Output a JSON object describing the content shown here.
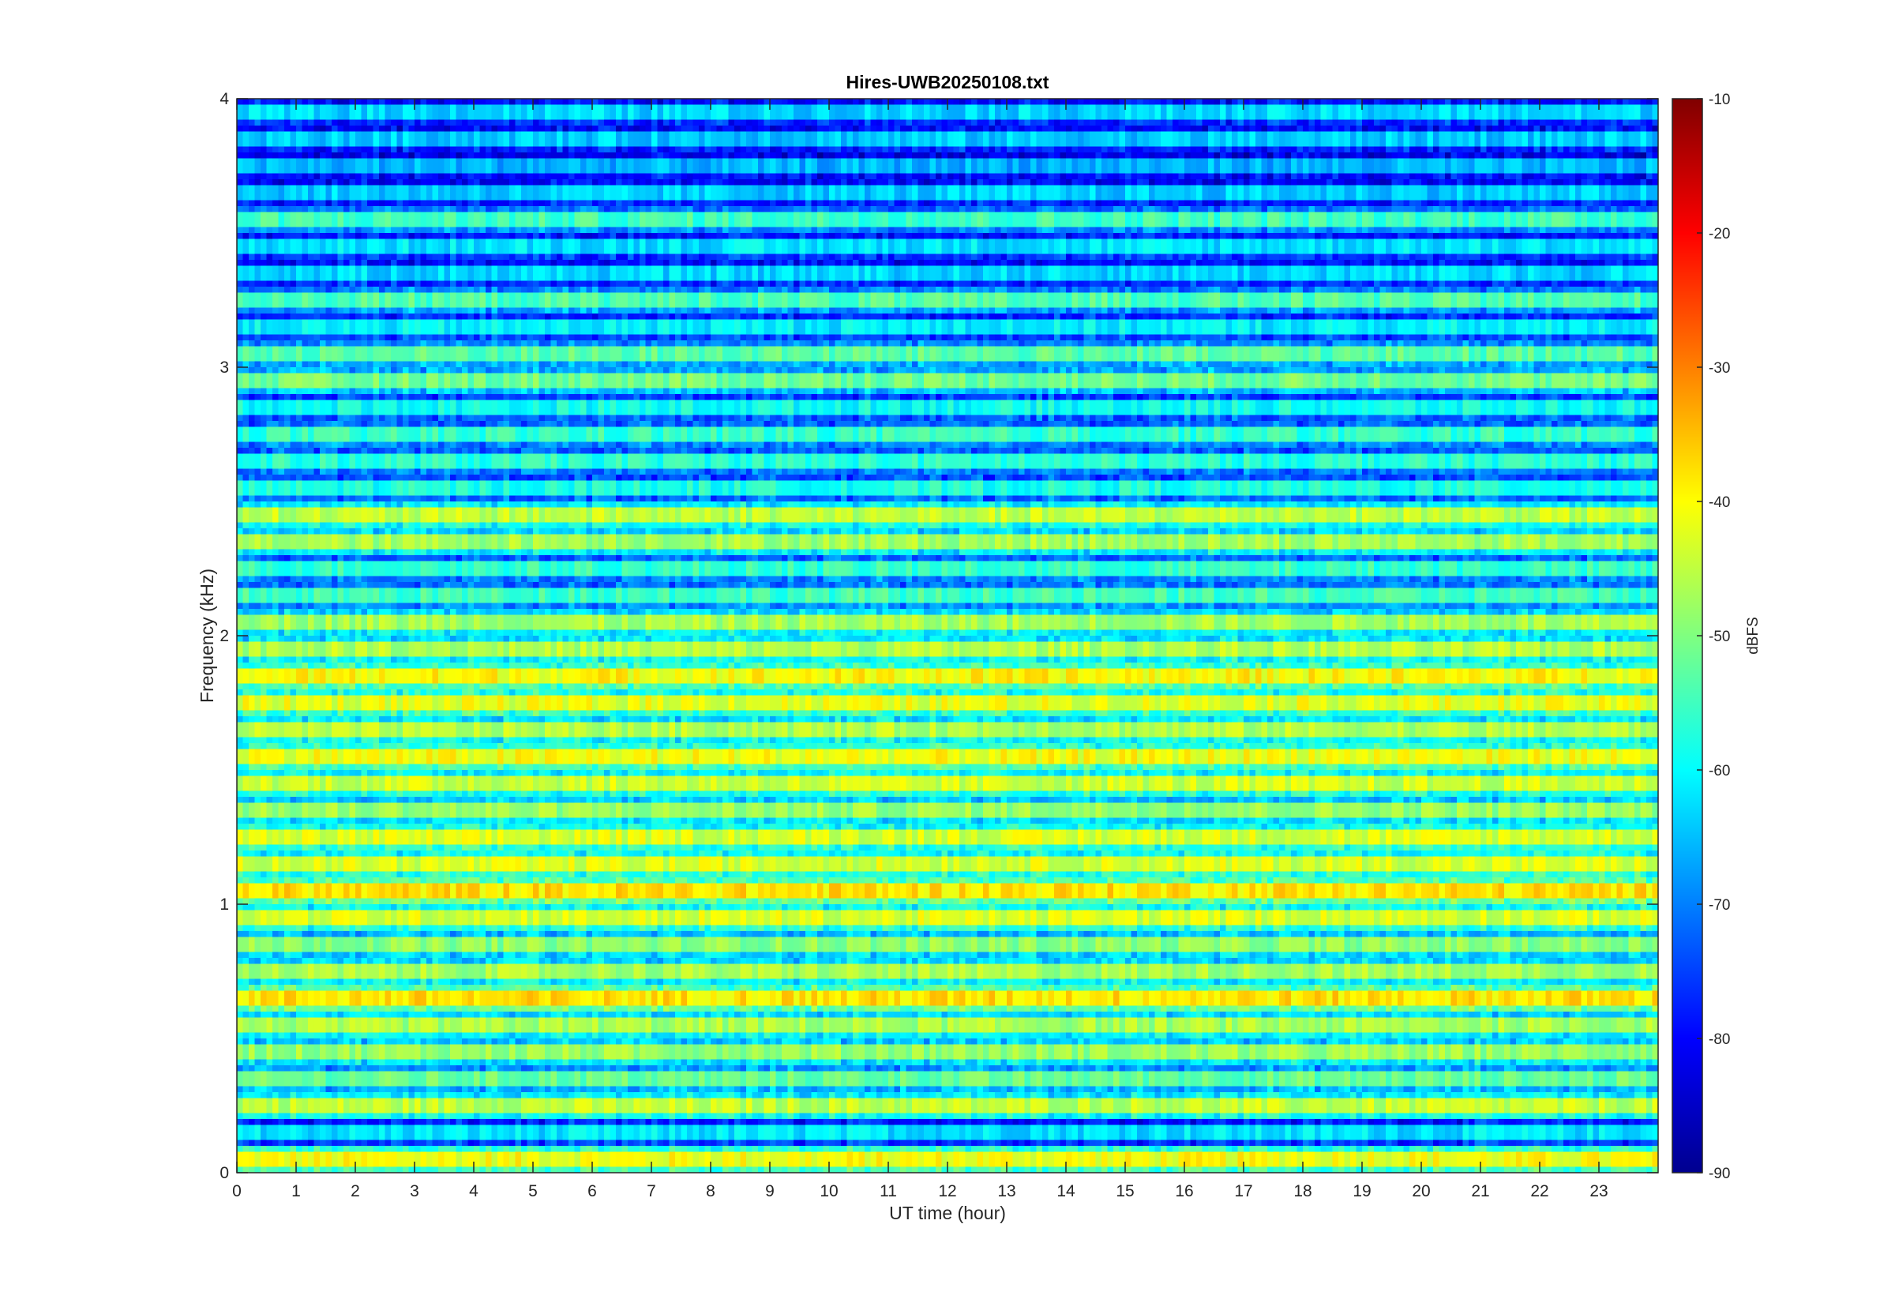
{
  "chart_data": {
    "type": "heatmap",
    "title": "Hires-UWB20250108.txt",
    "xlabel": "UT time (hour)",
    "ylabel": "Frequency (kHz)",
    "xlim": [
      0,
      24
    ],
    "ylim": [
      0,
      4
    ],
    "x_ticks": [
      0,
      1,
      2,
      3,
      4,
      5,
      6,
      7,
      8,
      9,
      10,
      11,
      12,
      13,
      14,
      15,
      16,
      17,
      18,
      19,
      20,
      21,
      22,
      23
    ],
    "y_ticks": [
      0,
      1,
      2,
      3,
      4
    ],
    "colorbar": {
      "label": "dBFS",
      "colormap": "jet",
      "range": [
        -90,
        -10
      ],
      "ticks": [
        -90,
        -80,
        -70,
        -60,
        -50,
        -40,
        -30,
        -20,
        -10
      ]
    },
    "grid": false,
    "band_spacing_khz": 0.1,
    "bands_khz": [
      {
        "f": 0.05,
        "level": -41
      },
      {
        "f": 0.15,
        "level": -62
      },
      {
        "f": 0.25,
        "level": -45
      },
      {
        "f": 0.35,
        "level": -52
      },
      {
        "f": 0.45,
        "level": -48
      },
      {
        "f": 0.55,
        "level": -47
      },
      {
        "f": 0.65,
        "level": -38
      },
      {
        "f": 0.75,
        "level": -47
      },
      {
        "f": 0.85,
        "level": -49
      },
      {
        "f": 0.95,
        "level": -43
      },
      {
        "f": 1.05,
        "level": -38
      },
      {
        "f": 1.15,
        "level": -43
      },
      {
        "f": 1.25,
        "level": -43
      },
      {
        "f": 1.35,
        "level": -48
      },
      {
        "f": 1.45,
        "level": -44
      },
      {
        "f": 1.55,
        "level": -41
      },
      {
        "f": 1.65,
        "level": -46
      },
      {
        "f": 1.75,
        "level": -42
      },
      {
        "f": 1.85,
        "level": -40
      },
      {
        "f": 1.95,
        "level": -46
      },
      {
        "f": 2.05,
        "level": -47
      },
      {
        "f": 2.15,
        "level": -55
      },
      {
        "f": 2.25,
        "level": -56
      },
      {
        "f": 2.35,
        "level": -47
      },
      {
        "f": 2.45,
        "level": -45
      },
      {
        "f": 2.55,
        "level": -58
      },
      {
        "f": 2.65,
        "level": -57
      },
      {
        "f": 2.75,
        "level": -56
      },
      {
        "f": 2.85,
        "level": -59
      },
      {
        "f": 2.95,
        "level": -51
      },
      {
        "f": 3.05,
        "level": -53
      },
      {
        "f": 3.15,
        "level": -61
      },
      {
        "f": 3.25,
        "level": -54
      },
      {
        "f": 3.35,
        "level": -63
      },
      {
        "f": 3.45,
        "level": -62
      },
      {
        "f": 3.55,
        "level": -55
      },
      {
        "f": 3.65,
        "level": -64
      },
      {
        "f": 3.75,
        "level": -66
      },
      {
        "f": 3.85,
        "level": -64
      },
      {
        "f": 3.95,
        "level": -63
      }
    ]
  }
}
